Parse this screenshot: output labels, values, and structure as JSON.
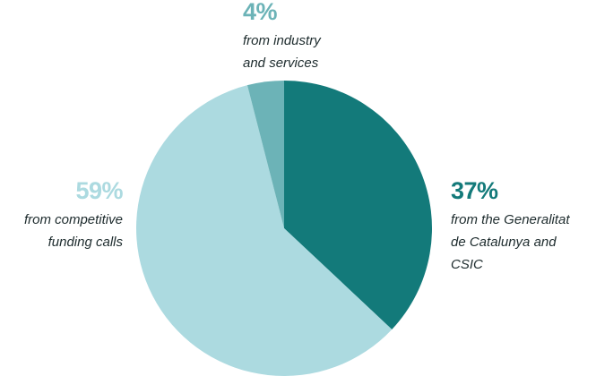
{
  "chart_data": {
    "type": "pie",
    "title": "",
    "slices": [
      {
        "key": "gov",
        "value": 37,
        "label": "37%",
        "text_lines": [
          "from the Generalitat",
          "de Catalunya and",
          "CSIC"
        ],
        "color": "#137a7a"
      },
      {
        "key": "comp",
        "value": 59,
        "label": "59%",
        "text_lines": [
          "from competitive",
          "funding calls"
        ],
        "color": "#acdae0"
      },
      {
        "key": "ind",
        "value": 4,
        "label": "4%",
        "text_lines": [
          "from industry",
          "and services"
        ],
        "color": "#6cb3b7"
      }
    ],
    "start": "top",
    "direction": "clockwise"
  }
}
